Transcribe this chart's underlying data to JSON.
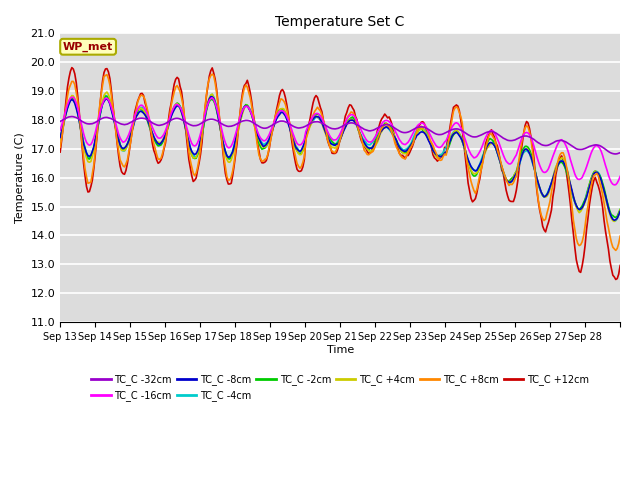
{
  "title": "Temperature Set C",
  "xlabel": "Time",
  "ylabel": "Temperature (C)",
  "ylim": [
    11.0,
    21.0
  ],
  "yticks": [
    11.0,
    12.0,
    13.0,
    14.0,
    15.0,
    16.0,
    17.0,
    18.0,
    19.0,
    20.0,
    21.0
  ],
  "bg_color": "#dcdcdc",
  "fig_color": "#ffffff",
  "wp_met_label": "WP_met",
  "series": [
    {
      "label": "TC_C -32cm",
      "color": "#9900cc"
    },
    {
      "label": "TC_C -16cm",
      "color": "#ff00ff"
    },
    {
      "label": "TC_C -8cm",
      "color": "#0000cc"
    },
    {
      "label": "TC_C -4cm",
      "color": "#00cccc"
    },
    {
      "label": "TC_C -2cm",
      "color": "#00cc00"
    },
    {
      "label": "TC_C +4cm",
      "color": "#cccc00"
    },
    {
      "label": "TC_C +8cm",
      "color": "#ff8800"
    },
    {
      "label": "TC_C +12cm",
      "color": "#cc0000"
    }
  ],
  "xtick_labels": [
    "Sep 13",
    "Sep 14",
    "Sep 15",
    "Sep 16",
    "Sep 17",
    "Sep 18",
    "Sep 19",
    "Sep 20",
    "Sep 21",
    "Sep 22",
    "Sep 23",
    "Sep 24",
    "Sep 25",
    "Sep 26",
    "Sep 27",
    "Sep 28"
  ]
}
